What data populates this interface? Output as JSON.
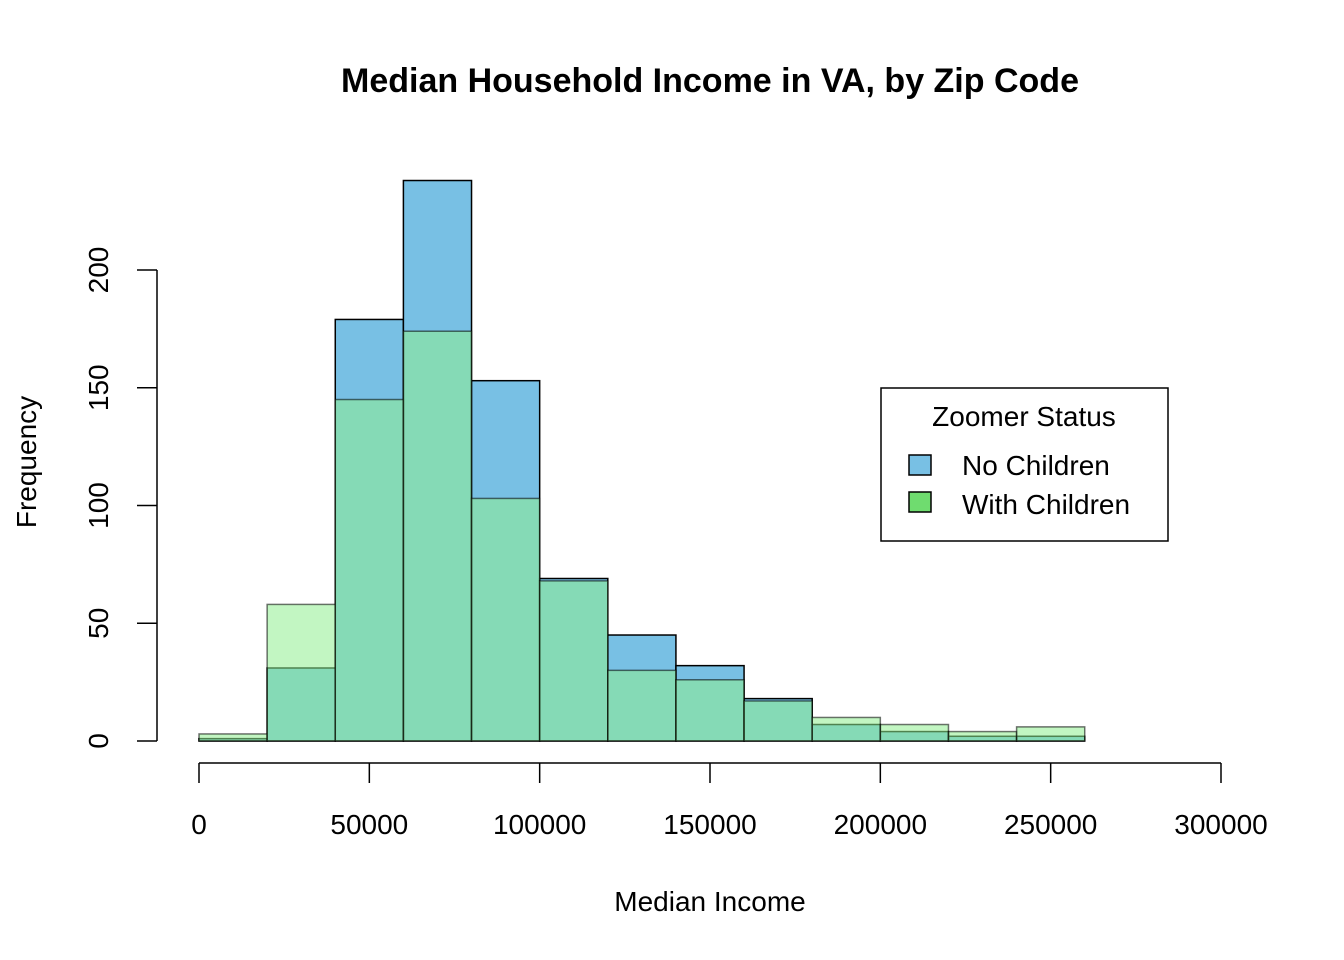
{
  "chart_data": {
    "type": "histogram",
    "title": "Median Household Income in VA, by Zip Code",
    "xlabel": "Median Income",
    "ylabel": "Frequency",
    "xlim": [
      0,
      300000
    ],
    "ylim": [
      0,
      240
    ],
    "x_ticks": [
      0,
      50000,
      100000,
      150000,
      200000,
      250000,
      300000
    ],
    "x_tick_labels": [
      "0",
      "50000",
      "100000",
      "150000",
      "200000",
      "250000",
      "300000"
    ],
    "y_ticks": [
      0,
      50,
      100,
      150,
      200
    ],
    "y_tick_labels": [
      "0",
      "50",
      "100",
      "150",
      "200"
    ],
    "bin_edges": [
      0,
      20000,
      40000,
      60000,
      80000,
      100000,
      120000,
      140000,
      160000,
      180000,
      200000,
      220000,
      240000,
      260000
    ],
    "series": [
      {
        "name": "No Children",
        "color": "#78c0e4",
        "values": [
          1,
          31,
          179,
          238,
          153,
          69,
          45,
          32,
          18,
          7,
          4,
          2,
          2
        ]
      },
      {
        "name": "With Children",
        "color": "#6fdc6f",
        "overlay_color": "rgba(144,238,144,0.55)",
        "values": [
          3,
          58,
          145,
          174,
          103,
          68,
          30,
          26,
          17,
          10,
          7,
          4,
          6
        ]
      }
    ],
    "overlap_color": "#7bd8b2",
    "grid": false,
    "legend": {
      "title": "Zoomer Status",
      "position": "right",
      "entries": [
        "No Children",
        "With Children"
      ]
    }
  }
}
